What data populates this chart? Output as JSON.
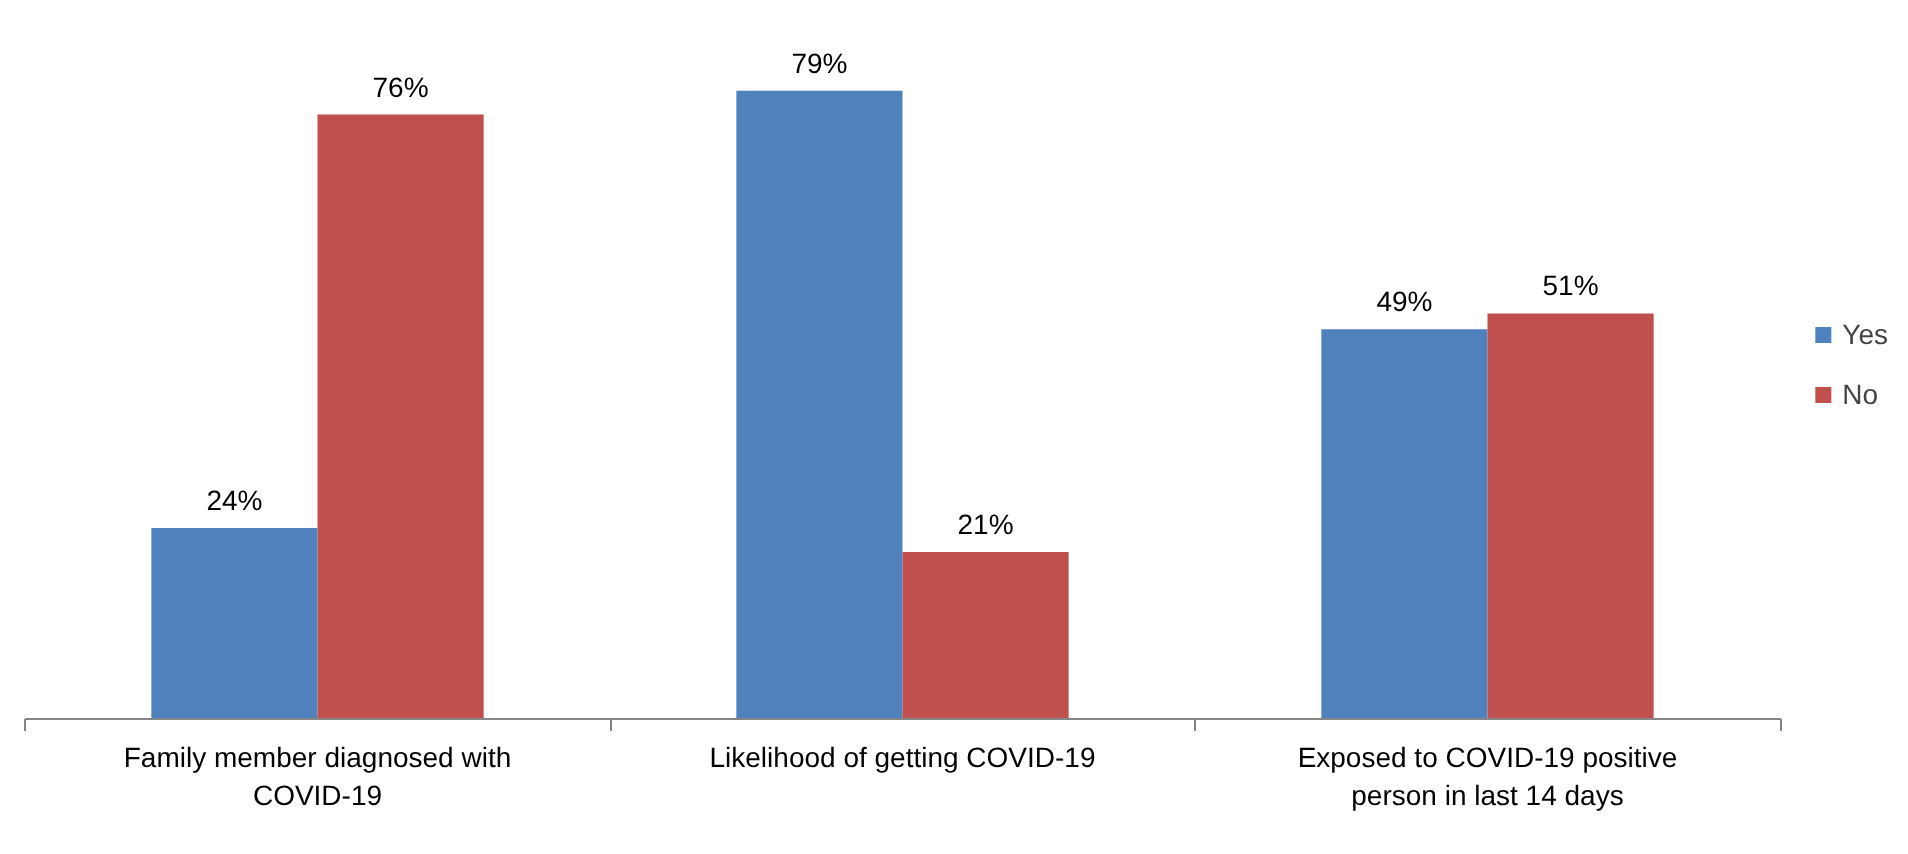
{
  "chart_data": {
    "type": "bar",
    "categories": [
      "Family member diagnosed with COVID-19",
      "Likelihood of getting COVID-19",
      "Exposed to COVID-19 positive person in last 14 days"
    ],
    "series": [
      {
        "name": "Yes",
        "color": "#4f81bd",
        "values": [
          24,
          79,
          49
        ],
        "value_labels": [
          "24%",
          "79%",
          "49%"
        ]
      },
      {
        "name": "No",
        "color": "#c0504d",
        "values": [
          76,
          21,
          51
        ],
        "value_labels": [
          "76%",
          "21%",
          "51%"
        ]
      }
    ],
    "grid": false,
    "legend": "right"
  }
}
